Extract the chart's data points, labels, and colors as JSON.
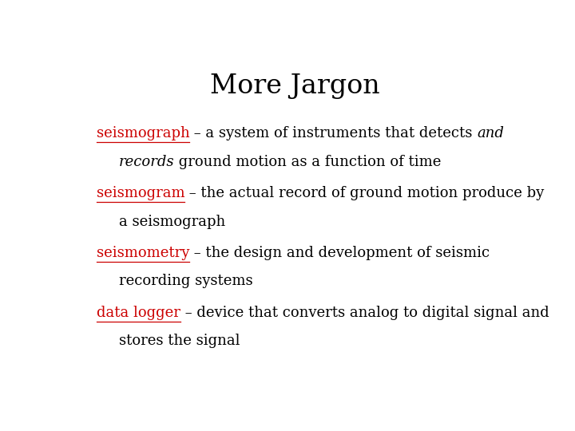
{
  "title": "More Jargon",
  "title_fontsize": 24,
  "title_color": "#000000",
  "background_color": "#ffffff",
  "body_fontsize": 13,
  "body_color": "#000000",
  "red_color": "#cc0000",
  "entries": [
    {
      "term": "seismograph",
      "line1_after_normal": " – a system of instruments that detects ",
      "line1_italic": "and",
      "line1_end": "",
      "line2_indent": "    ",
      "line2_italic": "records",
      "line2_rest": " ground motion as a function of time"
    },
    {
      "term": "seismogram",
      "line1_after_normal": " – the actual record of ground motion produce by",
      "line1_italic": null,
      "line1_end": "",
      "line2_indent": "    ",
      "line2_italic": null,
      "line2_rest": "a seismograph"
    },
    {
      "term": "seismometry",
      "line1_after_normal": " – the design and development of seismic",
      "line1_italic": null,
      "line1_end": "",
      "line2_indent": "    ",
      "line2_italic": null,
      "line2_rest": "recording systems"
    },
    {
      "term": "data logger",
      "line1_after_normal": " – device that converts analog to digital signal and",
      "line1_italic": null,
      "line1_end": "",
      "line2_indent": "    ",
      "line2_italic": null,
      "line2_rest": "stores the signal"
    }
  ]
}
